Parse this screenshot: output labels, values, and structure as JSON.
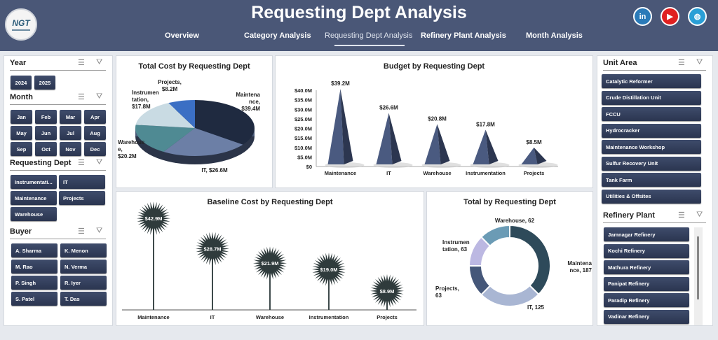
{
  "header": {
    "title": "Requesting Dept Analysis",
    "logo": "NGT",
    "nav": [
      "Overview",
      "Category Analysis",
      "Requesting Dept Analysis",
      "Refinery Plant Analysis",
      "Month Analysis"
    ],
    "active_nav": "Requesting Dept Analysis",
    "social": [
      {
        "icon": "linkedin-icon",
        "label": "in",
        "color": "#2a7ab8"
      },
      {
        "icon": "youtube-icon",
        "label": "▶",
        "color": "#e02020"
      },
      {
        "icon": "globe-icon",
        "label": "◍",
        "color": "#2a9fd6"
      }
    ]
  },
  "slicers": {
    "year": {
      "label": "Year",
      "items": [
        "2024",
        "2025"
      ]
    },
    "month": {
      "label": "Month",
      "items": [
        "Jan",
        "Feb",
        "Mar",
        "Apr",
        "May",
        "Jun",
        "Jul",
        "Aug",
        "Sep",
        "Oct",
        "Nov",
        "Dec"
      ]
    },
    "dept": {
      "label": "Requesting Dept",
      "items": [
        "Instrumentati...",
        "IT",
        "Maintenance",
        "Projects",
        "Warehouse"
      ]
    },
    "buyer": {
      "label": "Buyer",
      "items": [
        "A. Sharma",
        "K. Menon",
        "M. Rao",
        "N. Verma",
        "P. Singh",
        "R. Iyer",
        "S. Patel",
        "T. Das"
      ]
    },
    "unit": {
      "label": "Unit Area",
      "items": [
        "Catalytic Reformer",
        "Crude Distillation Unit",
        "FCCU",
        "Hydrocracker",
        "Maintenance Workshop",
        "Sulfur Recovery Unit",
        "Tank Farm",
        "Utilities & Offsites"
      ]
    },
    "plant": {
      "label": "Refinery Plant",
      "items": [
        "Jamnagar Refinery",
        "Kochi Refinery",
        "Mathura Refinery",
        "Panipat Refinery",
        "Paradip Refinery",
        "Vadinar Refinery"
      ]
    }
  },
  "chart_data": [
    {
      "type": "pie",
      "title": "Total Cost by Requesting Dept",
      "categories": [
        "Maintenance",
        "IT",
        "Warehouse",
        "Instrumentation",
        "Projects"
      ],
      "values": [
        39.4,
        26.6,
        20.2,
        17.8,
        8.2
      ],
      "labels": [
        "Maintena nce, $39.4M",
        "IT, $26.6M",
        "Warehous e, $20.2M",
        "Instrumen tation, $17.8M",
        "Projects, $8.2M"
      ],
      "colors": [
        "#1f2a40",
        "#6c7fa6",
        "#4f8a93",
        "#c9dbe3",
        "#3b6fc4"
      ]
    },
    {
      "type": "bar",
      "title": "Budget by Requesting Dept",
      "categories": [
        "Maintenance",
        "IT",
        "Warehouse",
        "Instrumentation",
        "Projects"
      ],
      "values": [
        39.2,
        26.6,
        20.8,
        17.8,
        8.5
      ],
      "data_labels": [
        "$39.2M",
        "$26.6M",
        "$20.8M",
        "$17.8M",
        "$8.5M"
      ],
      "yticks": [
        "$0",
        "$5.0M",
        "$10.0M",
        "$15.0M",
        "$20.0M",
        "$25.0M",
        "$30.0M",
        "$35.0M",
        "$40.0M"
      ],
      "ylim": [
        0,
        40
      ],
      "color": "#4a5a80"
    },
    {
      "type": "bar",
      "title": "Baseline Cost by Requesting Dept",
      "categories": [
        "Maintenance",
        "IT",
        "Warehouse",
        "Instrumentation",
        "Projects"
      ],
      "values": [
        42.9,
        28.7,
        21.9,
        19.0,
        8.9
      ],
      "data_labels": [
        "$42.9M",
        "$28.7M",
        "$21.9M",
        "$19.0M",
        "$8.9M"
      ],
      "color": "#2f3b3c"
    },
    {
      "type": "pie",
      "title": "Total by Requesting Dept",
      "categories": [
        "Maintenance",
        "IT",
        "Projects",
        "Instrumentation",
        "Warehouse"
      ],
      "values": [
        187,
        125,
        63,
        63,
        62
      ],
      "labels": [
        "Maintena nce, 187",
        "IT, 125",
        "Projects, 63",
        "Instrumen tation, 63",
        "Warehouse, 62"
      ],
      "colors": [
        "#2e4a5a",
        "#a9b6d3",
        "#455779",
        "#bcb8e2",
        "#6b9bb5"
      ]
    }
  ]
}
